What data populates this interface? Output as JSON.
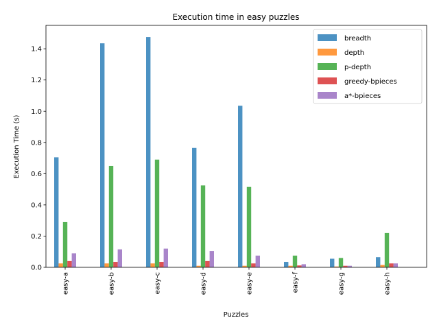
{
  "chart_data": {
    "type": "bar",
    "title": "Execution time in easy puzzles",
    "xlabel": "Puzzles",
    "ylabel": "Execution Time (s)",
    "ylim": [
      0,
      1.55
    ],
    "yticks": [
      "0.0",
      "0.2",
      "0.4",
      "0.6",
      "0.8",
      "1.0",
      "1.2",
      "1.4"
    ],
    "categories": [
      "easy-a",
      "easy-b",
      "easy-c",
      "easy-d",
      "easy-e",
      "easy-f",
      "easy-g",
      "easy-h"
    ],
    "series": [
      {
        "name": "breadth",
        "color": "#1f77b4",
        "values": [
          0.705,
          1.435,
          1.475,
          0.765,
          1.035,
          0.035,
          0.055,
          0.065
        ]
      },
      {
        "name": "depth",
        "color": "#ff7f0e",
        "values": [
          0.025,
          0.025,
          0.025,
          0.01,
          0.01,
          0.01,
          0.005,
          0.015
        ]
      },
      {
        "name": "p-depth",
        "color": "#2ca02c",
        "values": [
          0.29,
          0.65,
          0.69,
          0.525,
          0.515,
          0.075,
          0.06,
          0.22
        ]
      },
      {
        "name": "greedy-bpieces",
        "color": "#d62728",
        "values": [
          0.04,
          0.035,
          0.035,
          0.04,
          0.025,
          0.012,
          0.01,
          0.025
        ]
      },
      {
        "name": "a*-bpieces",
        "color": "#9467bd",
        "values": [
          0.09,
          0.115,
          0.12,
          0.105,
          0.075,
          0.02,
          0.01,
          0.025
        ]
      }
    ],
    "legend_position": "top-right",
    "grid": false,
    "bar_alpha": 0.8
  }
}
